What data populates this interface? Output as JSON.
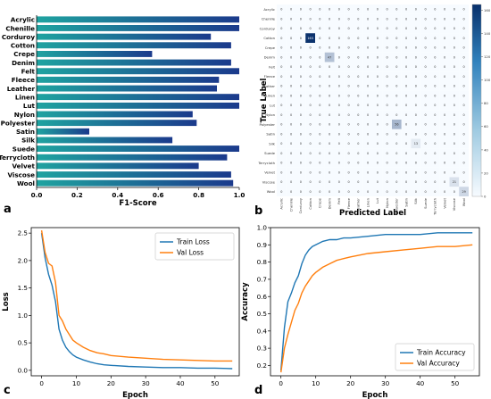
{
  "panels": {
    "a": "a",
    "b": "b",
    "c": "c",
    "d": "d"
  },
  "colors": {
    "bar_start": "#1fa3a0",
    "bar_end": "#1b3a8c",
    "train": "#1f77b4",
    "val": "#ff7f0e",
    "heat_low": "#f7fbff",
    "heat_high": "#08306b"
  },
  "chart_data": [
    {
      "panel": "a",
      "type": "bar",
      "orientation": "horizontal",
      "categories": [
        "Acrylic",
        "Chenille",
        "Corduroy",
        "Cotton",
        "Crepe",
        "Denim",
        "Felt",
        "Fleece",
        "Leather",
        "Linen",
        "Lut",
        "Nylon",
        "Polyester",
        "Satin",
        "Silk",
        "Suede",
        "Terrycloth",
        "Velvet",
        "Viscose",
        "Wool"
      ],
      "values": [
        1.0,
        1.0,
        0.86,
        0.96,
        0.57,
        0.96,
        1.0,
        0.9,
        0.89,
        1.0,
        1.0,
        0.77,
        0.79,
        0.26,
        0.67,
        1.0,
        0.94,
        0.8,
        0.96,
        0.97
      ],
      "xlabel": "F1-Score",
      "xlim": [
        0,
        1.0
      ],
      "xticks": [
        "0.0",
        "0.2",
        "0.4",
        "0.6",
        "0.8",
        "1.0"
      ]
    },
    {
      "panel": "b",
      "type": "heatmap",
      "ylabel": "True Label",
      "xlabel": "Predicted Label",
      "rows": [
        "Acrylic",
        "Chenille",
        "Corduroy",
        "Cotton",
        "Crepe",
        "Denim",
        "Felt",
        "Fleece",
        "Leather",
        "Linen",
        "Lut",
        "Nylon",
        "Polyester",
        "Satin",
        "Silk",
        "Suede",
        "Terrycloth",
        "Velvet",
        "Viscose",
        "Wool"
      ],
      "columns": [
        "Acrylic",
        "Chenille",
        "Corduroy",
        "Cotton",
        "Crepe",
        "Denim",
        "Felt",
        "Fleece",
        "Leather",
        "Linen",
        "Lut",
        "Nylon",
        "Polyester",
        "Satin",
        "Silk",
        "Suede",
        "Terrycloth",
        "Velvet",
        "Viscose",
        "Wool"
      ],
      "diagonal": [
        0,
        0,
        0,
        163,
        0,
        47,
        0,
        0,
        0,
        0,
        0,
        0,
        56,
        0,
        13,
        0,
        0,
        0,
        21,
        29
      ],
      "colorbar_ticks": [
        "160",
        "140",
        "120",
        "100",
        "80",
        "60",
        "40",
        "20",
        "0"
      ],
      "vmax": 165
    },
    {
      "panel": "c",
      "type": "line",
      "xlabel": "Epoch",
      "ylabel": "Loss",
      "xlim": [
        -3,
        57
      ],
      "ylim": [
        -0.1,
        2.6
      ],
      "xticks": [
        0,
        10,
        20,
        30,
        40,
        50
      ],
      "yticks": [
        0.0,
        0.5,
        1.0,
        1.5,
        2.0,
        2.5
      ],
      "legend": "upper right",
      "series": [
        {
          "name": "Train Loss",
          "key": "train",
          "x": [
            0,
            1,
            2,
            3,
            4,
            5,
            6,
            7,
            8,
            9,
            10,
            12,
            14,
            16,
            18,
            20,
            25,
            30,
            35,
            40,
            45,
            50,
            55
          ],
          "y": [
            2.5,
            2.05,
            1.75,
            1.55,
            1.25,
            0.75,
            0.55,
            0.42,
            0.34,
            0.28,
            0.24,
            0.19,
            0.15,
            0.12,
            0.1,
            0.09,
            0.07,
            0.06,
            0.05,
            0.05,
            0.04,
            0.04,
            0.03
          ]
        },
        {
          "name": "Val Loss",
          "key": "val",
          "x": [
            0,
            1,
            2,
            3,
            4,
            5,
            6,
            7,
            8,
            9,
            10,
            12,
            14,
            16,
            18,
            20,
            25,
            30,
            35,
            40,
            45,
            50,
            55
          ],
          "y": [
            2.55,
            2.15,
            1.95,
            1.9,
            1.6,
            1.0,
            0.9,
            0.75,
            0.65,
            0.55,
            0.5,
            0.42,
            0.36,
            0.32,
            0.3,
            0.27,
            0.24,
            0.22,
            0.2,
            0.19,
            0.18,
            0.17,
            0.17
          ]
        }
      ]
    },
    {
      "panel": "d",
      "type": "line",
      "xlabel": "Epoch",
      "ylabel": "Accuracy",
      "xlim": [
        -3,
        57
      ],
      "ylim": [
        0.14,
        1.0
      ],
      "xticks": [
        0,
        10,
        20,
        30,
        40,
        50
      ],
      "yticks": [
        0.2,
        0.3,
        0.4,
        0.5,
        0.6,
        0.7,
        0.8,
        0.9,
        1.0
      ],
      "legend": "lower right",
      "series": [
        {
          "name": "Train Accuracy",
          "key": "train",
          "x": [
            0,
            1,
            2,
            3,
            4,
            5,
            6,
            7,
            8,
            9,
            10,
            12,
            14,
            16,
            18,
            20,
            25,
            30,
            35,
            40,
            45,
            50,
            55
          ],
          "y": [
            0.17,
            0.42,
            0.57,
            0.62,
            0.68,
            0.72,
            0.79,
            0.84,
            0.87,
            0.89,
            0.9,
            0.92,
            0.93,
            0.93,
            0.94,
            0.94,
            0.95,
            0.96,
            0.96,
            0.96,
            0.97,
            0.97,
            0.97
          ]
        },
        {
          "name": "Val Accuracy",
          "key": "val",
          "x": [
            0,
            1,
            2,
            3,
            4,
            5,
            6,
            7,
            8,
            9,
            10,
            12,
            14,
            16,
            18,
            20,
            25,
            30,
            35,
            40,
            45,
            50,
            55
          ],
          "y": [
            0.16,
            0.3,
            0.38,
            0.45,
            0.52,
            0.56,
            0.62,
            0.66,
            0.69,
            0.72,
            0.74,
            0.77,
            0.79,
            0.81,
            0.82,
            0.83,
            0.85,
            0.86,
            0.87,
            0.88,
            0.89,
            0.89,
            0.9
          ]
        }
      ]
    }
  ]
}
